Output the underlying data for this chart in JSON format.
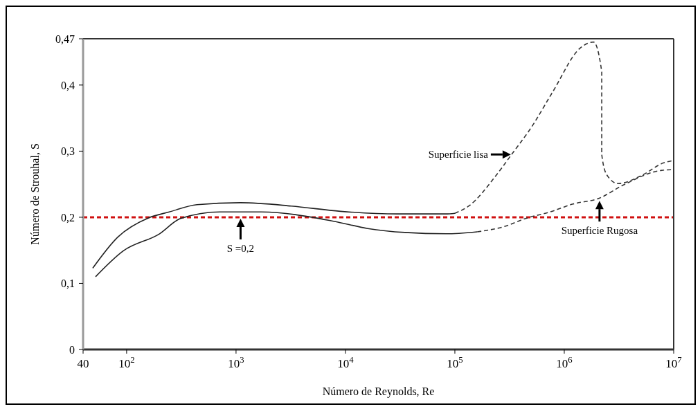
{
  "chart_data": {
    "type": "line",
    "xlabel": "Número de Reynolds, Re",
    "ylabel": "Número de Strouhal, S",
    "log": "x",
    "marker": "none",
    "grid": false,
    "xlim": [
      40,
      10000000
    ],
    "xticks": [
      40,
      {
        "value": 100,
        "label": "10$^{2}$"
      },
      {
        "value": 1000,
        "label": "10$^{3}$"
      },
      {
        "value": 10000,
        "label": "10$^{4}$"
      },
      {
        "value": 100000,
        "label": "10$^{5}$"
      },
      {
        "value": 1000000,
        "label": "10$^{6}$"
      },
      {
        "value": 10000000,
        "label": "10$^{7}$"
      }
    ],
    "ylim": [
      0,
      0.47
    ],
    "yticks": [
      0,
      {
        "value": 0.1,
        "label": "0,1"
      },
      {
        "value": 0.2,
        "label": "0,2"
      },
      {
        "value": 0.3,
        "label": "0,3"
      },
      {
        "value": 0.4,
        "label": "0,4"
      },
      {
        "value": 0.47,
        "label": "0,47"
      }
    ],
    "series": [
      {
        "color": "#222222",
        "line_style": "solid",
        "x": [
          49,
          83,
          158,
          245,
          440,
          1100,
          3200,
          9000,
          30000,
          83000,
          100000
        ],
        "values": [
          0.123,
          0.17,
          0.199,
          0.208,
          0.219,
          0.222,
          0.217,
          0.209,
          0.205,
          0.205,
          0.206
        ]
      },
      {
        "color": "#222222",
        "line_style": "solid",
        "x": [
          52,
          93,
          200,
          310,
          710,
          1700,
          7800,
          16000,
          35000,
          83000,
          160000
        ],
        "values": [
          0.11,
          0.149,
          0.175,
          0.198,
          0.208,
          0.208,
          0.194,
          0.183,
          0.177,
          0.175,
          0.178
        ]
      },
      {
        "color": "#333333",
        "line_style": "dashed",
        "x": [
          100000,
          134000,
          240000,
          330000,
          500000,
          780000,
          1400000,
          1850000,
          2200000,
          2200000,
          2450000,
          3100000,
          5200000,
          8000000,
          10000000
        ],
        "values": [
          0.206,
          0.217,
          0.264,
          0.295,
          0.336,
          0.389,
          0.456,
          0.465,
          0.42,
          0.295,
          0.264,
          0.251,
          0.264,
          0.282,
          0.286
        ]
      },
      {
        "color": "#333333",
        "line_style": "dashed",
        "x": [
          160000,
          270000,
          460000,
          740000,
          1200000,
          2100000,
          3400000,
          7800000,
          10000000
        ],
        "values": [
          0.178,
          0.185,
          0.199,
          0.208,
          0.22,
          0.229,
          0.248,
          0.271,
          0.272
        ]
      }
    ],
    "ref_lines": [
      {
        "axis": "y",
        "value": 0.2,
        "color": "#d01010",
        "line_style": "dashed"
      }
    ],
    "annotations": [
      {
        "text": "Superficie lisa",
        "x": 330000,
        "y": 0.295
      },
      {
        "text": "S =0,2",
        "x": 1100,
        "y": 0.2
      },
      {
        "text": "Superficie Rugosa",
        "x": 2100000,
        "y": 0.227
      }
    ]
  }
}
